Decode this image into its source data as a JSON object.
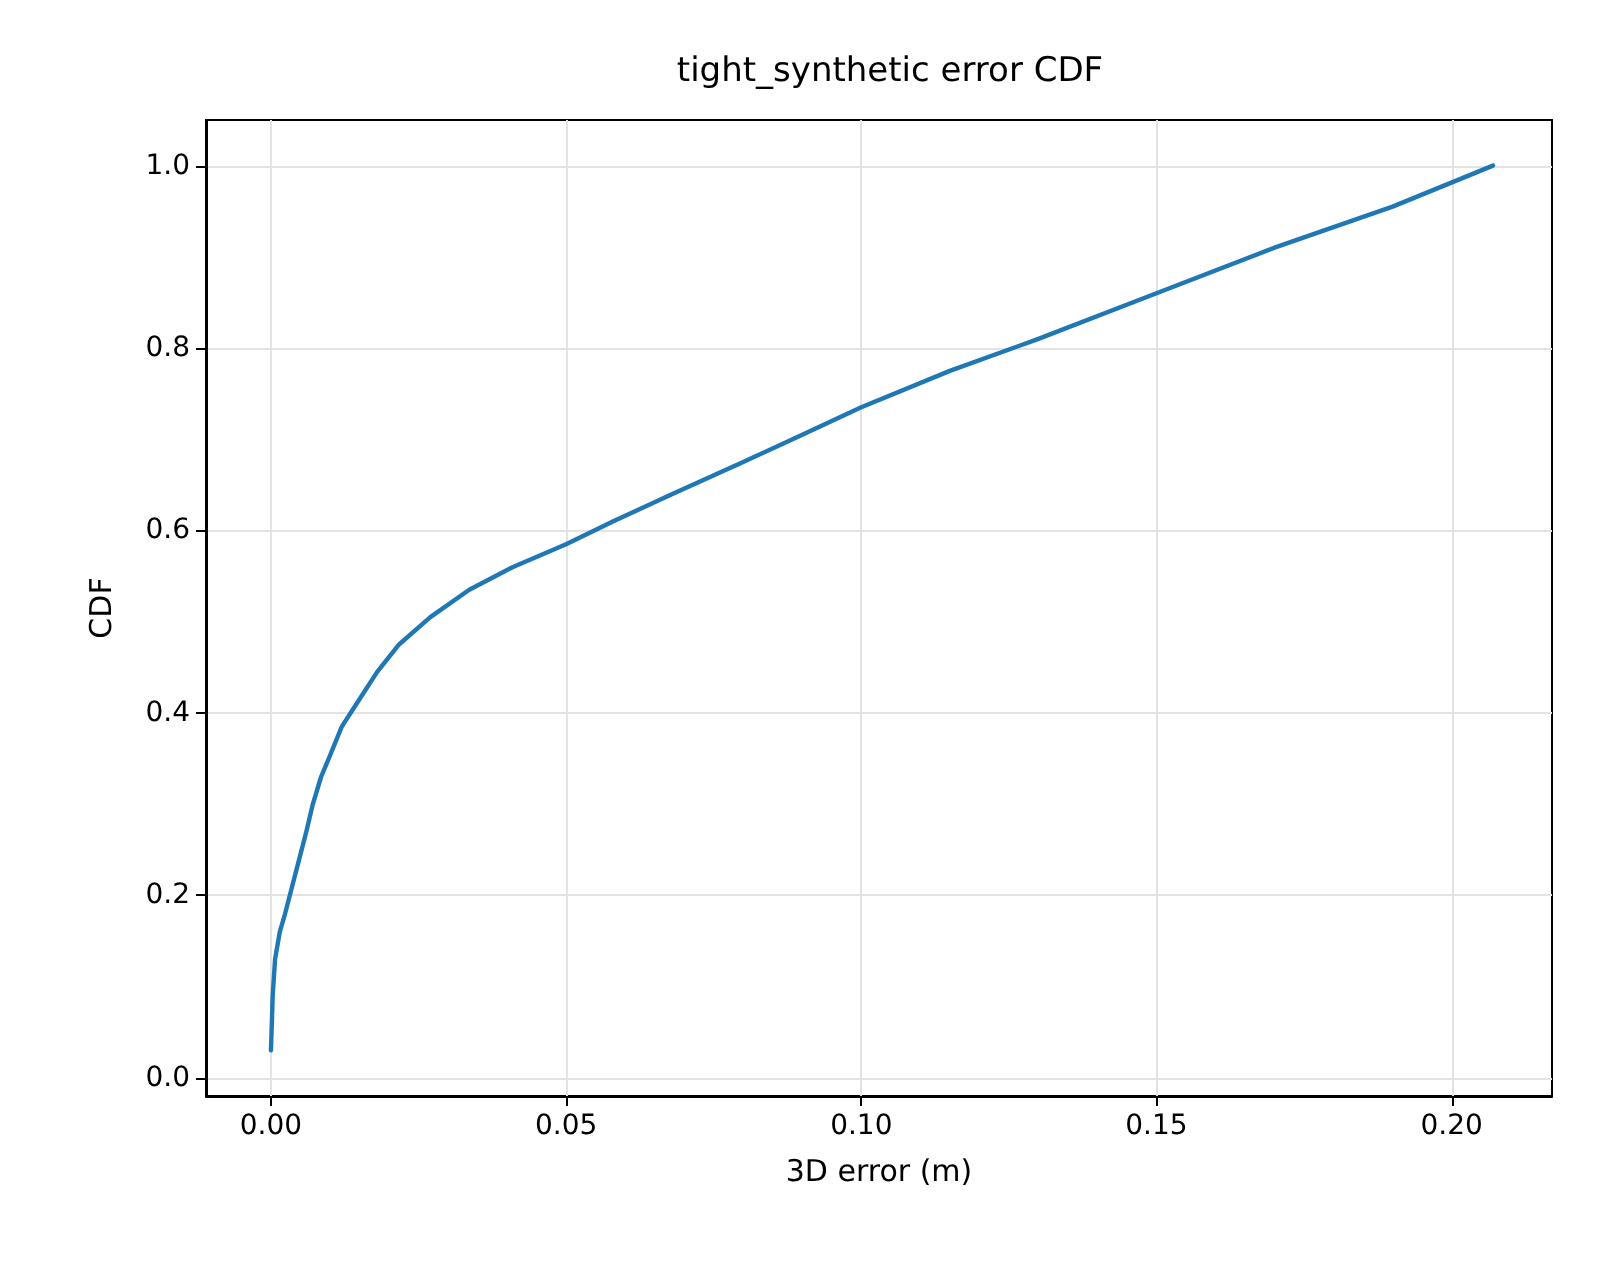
{
  "chart_data": {
    "type": "line",
    "title": "tight_synthetic error CDF",
    "xlabel": "3D error (m)",
    "ylabel": "CDF",
    "x": [
      0,
      0.0003,
      0.0007,
      0.0015,
      0.0024,
      0.0036,
      0.0048,
      0.006,
      0.0071,
      0.0085,
      0.0098,
      0.012,
      0.015,
      0.018,
      0.0217,
      0.027,
      0.0336,
      0.041,
      0.05,
      0.058,
      0.068,
      0.08,
      0.09,
      0.1,
      0.115,
      0.13,
      0.15,
      0.17,
      0.19,
      0.207
    ],
    "series": [
      {
        "color": "#1f77b4",
        "values": [
          0.03,
          0.09,
          0.13,
          0.16,
          0.18,
          0.21,
          0.24,
          0.27,
          0.3,
          0.33,
          0.35,
          0.385,
          0.415,
          0.445,
          0.475,
          0.505,
          0.535,
          0.56,
          0.585,
          0.61,
          0.64,
          0.675,
          0.705,
          0.735,
          0.775,
          0.81,
          0.86,
          0.91,
          0.955,
          1.0
        ]
      }
    ],
    "xlim": [
      -0.011,
      0.217
    ],
    "ylim": [
      -0.02,
      1.05
    ],
    "xticks": [
      {
        "value": 0,
        "label": "0.00"
      },
      0.05,
      {
        "value": 0.1,
        "label": "0.10"
      },
      0.15,
      {
        "value": 0.2,
        "label": "0.20"
      }
    ],
    "yticks": [
      {
        "value": 0,
        "label": "0.0"
      },
      0.2,
      0.4,
      0.6,
      0.8,
      {
        "value": 1,
        "label": "1.0"
      }
    ],
    "grid": true,
    "marker": "none",
    "line_style": "solid"
  }
}
